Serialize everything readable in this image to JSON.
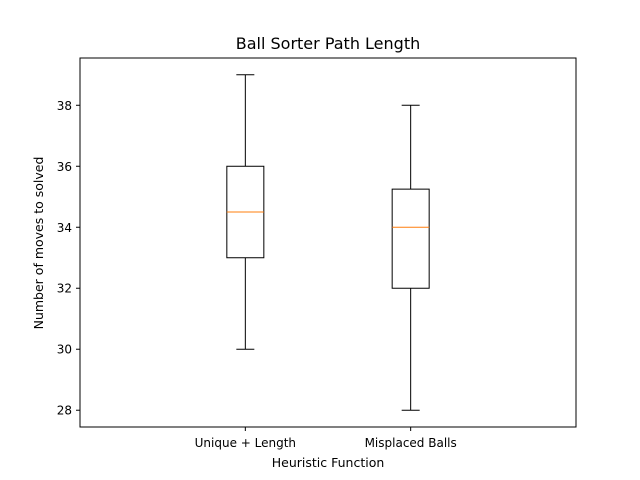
{
  "chart_data": {
    "type": "box",
    "title": "Ball Sorter Path Length",
    "xlabel": "Heuristic Function",
    "ylabel": "Number of moves to solved",
    "categories": [
      "Unique + Length",
      "Misplaced Balls"
    ],
    "boxes": [
      {
        "name": "Unique + Length",
        "whisker_low": 30,
        "q1": 33,
        "median": 34.5,
        "q3": 36,
        "whisker_high": 39
      },
      {
        "name": "Misplaced Balls",
        "whisker_low": 28,
        "q1": 32,
        "median": 34,
        "q3": 35.25,
        "whisker_high": 38
      }
    ],
    "ylim": [
      27.45,
      39.55
    ],
    "yticks": [
      28,
      30,
      32,
      34,
      36,
      38
    ],
    "grid": false,
    "colors": {
      "box": "#000000",
      "median": "#ff7f0e",
      "background": "#ffffff"
    }
  }
}
